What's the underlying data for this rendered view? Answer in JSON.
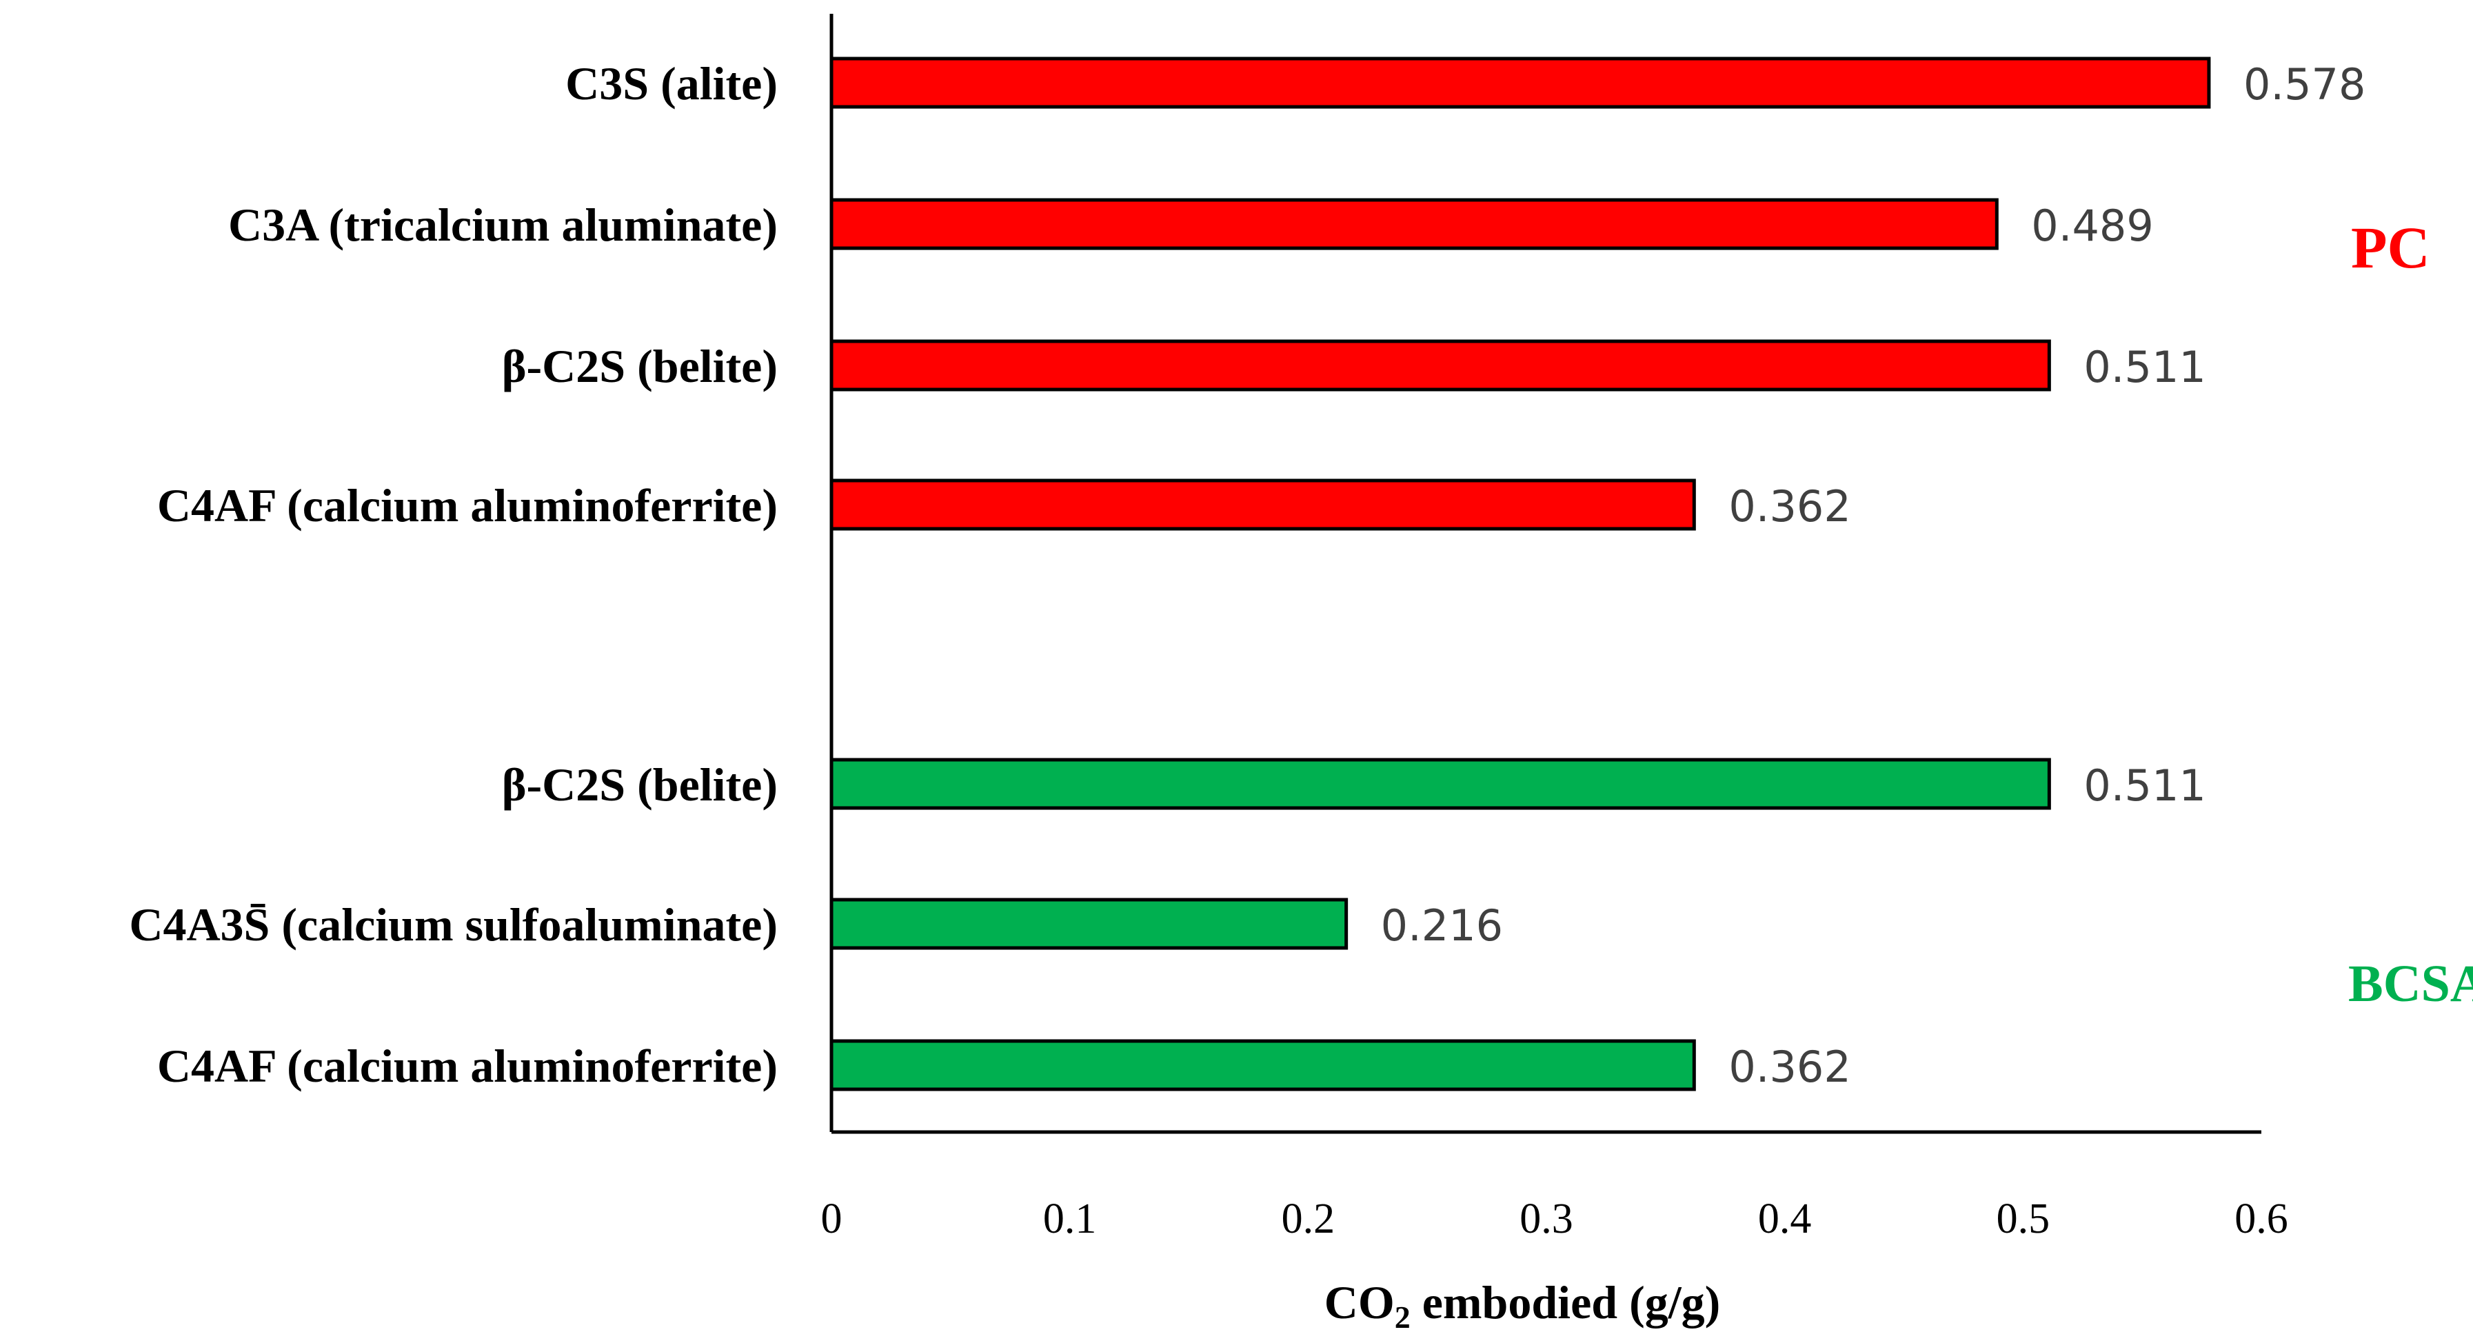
{
  "chart_data": {
    "type": "bar",
    "orientation": "horizontal",
    "xlabel_main": "CO",
    "xlabel_sub": "2",
    "xlabel_rest": " embodied (g/g)",
    "xlim": [
      0,
      0.6
    ],
    "xticks": [
      "0",
      "0.1",
      "0.2",
      "0.3",
      "0.4",
      "0.5",
      "0.6"
    ],
    "xtick_values": [
      0,
      0.1,
      0.2,
      0.3,
      0.4,
      0.5,
      0.6
    ],
    "grid": false,
    "groups": [
      {
        "name": "PC",
        "color": "#ff0000",
        "bars": [
          {
            "label": "C3S (alite)",
            "value": 0.578,
            "value_label": "0.578"
          },
          {
            "label": "C3A (tricalcium aluminate)",
            "value": 0.489,
            "value_label": "0.489"
          },
          {
            "label": "β-C2S (belite)",
            "value": 0.511,
            "value_label": "0.511"
          },
          {
            "label": "C4AF (calcium aluminoferrite)",
            "value": 0.362,
            "value_label": "0.362"
          }
        ]
      },
      {
        "name": "BCSA",
        "color": "#00b050",
        "bars": [
          {
            "label": "β-C2S (belite)",
            "value": 0.511,
            "value_label": "0.511"
          },
          {
            "label": "C4A3S̄ (calcium sulfoaluminate)",
            "value": 0.216,
            "value_label": "0.216"
          },
          {
            "label": "C4AF (calcium aluminoferrite)",
            "value": 0.362,
            "value_label": "0.362"
          }
        ]
      }
    ]
  }
}
